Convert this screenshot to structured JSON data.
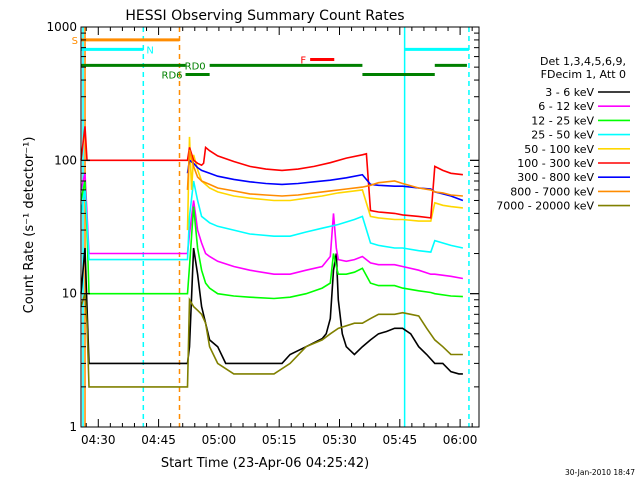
{
  "chart_data": {
    "type": "line",
    "title": "HESSI Observing Summary Count Rates",
    "xlabel": "Start Time (23-Apr-06 04:25:42)",
    "ylabel": "Count Rate (s⁻¹ detector⁻¹)",
    "x_unit": "minutes after 04:25:42",
    "xlim": [
      0,
      99
    ],
    "ylim": [
      1,
      1000
    ],
    "yscale": "log",
    "grid": false,
    "x_ticks": [
      {
        "label": "04:30",
        "value": 4.3
      },
      {
        "label": "04:45",
        "value": 19.3
      },
      {
        "label": "05:00",
        "value": 34.3
      },
      {
        "label": "05:15",
        "value": 49.3
      },
      {
        "label": "05:30",
        "value": 64.3
      },
      {
        "label": "05:45",
        "value": 79.3
      },
      {
        "label": "06:00",
        "value": 94.3
      }
    ],
    "y_ticks": [
      {
        "label": "1",
        "value": 1
      },
      {
        "label": "10",
        "value": 10
      },
      {
        "label": "100",
        "value": 100
      },
      {
        "label": "1000",
        "value": 1000
      }
    ],
    "legend_header": [
      "Det 1,3,4,5,6,9,",
      "FDecim 1, Att 0"
    ],
    "legend_placement": "right",
    "series": [
      {
        "name": "3 - 6 keV",
        "color": "#000000",
        "points": [
          [
            0,
            10
          ],
          [
            1,
            22
          ],
          [
            1.5,
            8
          ],
          [
            2,
            3
          ],
          [
            26.5,
            3
          ],
          [
            27,
            4
          ],
          [
            28,
            22
          ],
          [
            29,
            14
          ],
          [
            30,
            8
          ],
          [
            31,
            6
          ],
          [
            32,
            4.5
          ],
          [
            34,
            4
          ],
          [
            36,
            3
          ],
          [
            40,
            3
          ],
          [
            48,
            3
          ],
          [
            50,
            3
          ],
          [
            52,
            3.5
          ],
          [
            56,
            4
          ],
          [
            60,
            4.6
          ],
          [
            61,
            5
          ],
          [
            62,
            6.5
          ],
          [
            62.8,
            15
          ],
          [
            63.5,
            20
          ],
          [
            64,
            9
          ],
          [
            65,
            5
          ],
          [
            66,
            4
          ],
          [
            68,
            3.5
          ],
          [
            70,
            4
          ],
          [
            72,
            4.5
          ],
          [
            74,
            5
          ],
          [
            76,
            5.2
          ],
          [
            78,
            5.5
          ],
          [
            80,
            5.5
          ],
          [
            82,
            5
          ],
          [
            84,
            4
          ],
          [
            86,
            3.5
          ],
          [
            88,
            3
          ],
          [
            90,
            3
          ],
          [
            92,
            2.6
          ],
          [
            94,
            2.5
          ],
          [
            95,
            2.5
          ]
        ]
      },
      {
        "name": "6 - 12 keV",
        "color": "#ff00ff",
        "points": [
          [
            0,
            60
          ],
          [
            1,
            80
          ],
          [
            1.5,
            40
          ],
          [
            2,
            20
          ],
          [
            26.5,
            20
          ],
          [
            27,
            28
          ],
          [
            28,
            50
          ],
          [
            29,
            30
          ],
          [
            30,
            24
          ],
          [
            31,
            20
          ],
          [
            32,
            19
          ],
          [
            34,
            17.5
          ],
          [
            38,
            16
          ],
          [
            42,
            15
          ],
          [
            48,
            14
          ],
          [
            52,
            14
          ],
          [
            56,
            15
          ],
          [
            60,
            16
          ],
          [
            62,
            19
          ],
          [
            62.8,
            40
          ],
          [
            63.5,
            22
          ],
          [
            64,
            18
          ],
          [
            66,
            17.5
          ],
          [
            68,
            18
          ],
          [
            70,
            19
          ],
          [
            72,
            17
          ],
          [
            74,
            16.5
          ],
          [
            78,
            16.5
          ],
          [
            80,
            16
          ],
          [
            84,
            15
          ],
          [
            87,
            14
          ],
          [
            88,
            14
          ],
          [
            92,
            13.5
          ],
          [
            95,
            13
          ]
        ]
      },
      {
        "name": "12 - 25 keV",
        "color": "#00ff00",
        "points": [
          [
            0,
            50
          ],
          [
            1,
            70
          ],
          [
            1.5,
            30
          ],
          [
            2,
            10
          ],
          [
            26.5,
            10
          ],
          [
            27,
            16
          ],
          [
            28,
            45
          ],
          [
            29,
            22
          ],
          [
            30,
            15
          ],
          [
            31,
            12
          ],
          [
            32,
            11
          ],
          [
            34,
            10
          ],
          [
            38,
            9.6
          ],
          [
            42,
            9.4
          ],
          [
            48,
            9.2
          ],
          [
            52,
            9.4
          ],
          [
            56,
            10
          ],
          [
            60,
            11
          ],
          [
            62,
            12
          ],
          [
            62.8,
            20
          ],
          [
            63.5,
            16
          ],
          [
            64,
            14
          ],
          [
            66,
            14
          ],
          [
            68,
            14.5
          ],
          [
            70,
            15.5
          ],
          [
            72,
            12
          ],
          [
            74,
            11.5
          ],
          [
            78,
            11.5
          ],
          [
            80,
            11
          ],
          [
            84,
            10.5
          ],
          [
            87,
            10.2
          ],
          [
            88,
            10
          ],
          [
            92,
            9.6
          ],
          [
            95,
            9.5
          ]
        ]
      },
      {
        "name": "25 - 50 keV",
        "color": "#00ffff",
        "points": [
          [
            0,
            40
          ],
          [
            1,
            60
          ],
          [
            1.5,
            35
          ],
          [
            2,
            18
          ],
          [
            26.5,
            18
          ],
          [
            27,
            38
          ],
          [
            28,
            70
          ],
          [
            29,
            50
          ],
          [
            30,
            38
          ],
          [
            32,
            34
          ],
          [
            34,
            32
          ],
          [
            38,
            30
          ],
          [
            42,
            28
          ],
          [
            48,
            27
          ],
          [
            52,
            27
          ],
          [
            56,
            29
          ],
          [
            60,
            31
          ],
          [
            64,
            33
          ],
          [
            68,
            36
          ],
          [
            70,
            38
          ],
          [
            72,
            24
          ],
          [
            74,
            23
          ],
          [
            78,
            22
          ],
          [
            80,
            22
          ],
          [
            84,
            21
          ],
          [
            87,
            20.5
          ],
          [
            88,
            25
          ],
          [
            92,
            23
          ],
          [
            95,
            22
          ]
        ]
      },
      {
        "name": "50 - 100 keV",
        "color": "#ffd700",
        "points": [
          [
            26.5,
            30
          ],
          [
            27,
            150
          ],
          [
            27.5,
            60
          ],
          [
            28,
            110
          ],
          [
            29,
            85
          ],
          [
            30,
            70
          ],
          [
            32,
            62
          ],
          [
            34,
            58
          ],
          [
            38,
            54
          ],
          [
            42,
            52
          ],
          [
            48,
            50
          ],
          [
            52,
            50
          ],
          [
            56,
            52
          ],
          [
            60,
            54
          ],
          [
            64,
            57
          ],
          [
            68,
            59
          ],
          [
            70,
            60
          ],
          [
            72,
            38
          ],
          [
            74,
            37
          ],
          [
            78,
            36
          ],
          [
            80,
            36
          ],
          [
            84,
            35
          ],
          [
            87,
            35
          ],
          [
            88,
            48
          ],
          [
            90,
            46
          ],
          [
            92,
            45
          ],
          [
            95,
            44
          ]
        ]
      },
      {
        "name": "100 - 300 keV",
        "color": "#ff0000",
        "points": [
          [
            0,
            100
          ],
          [
            1,
            180
          ],
          [
            1.5,
            100
          ],
          [
            26.5,
            100
          ],
          [
            27,
            125
          ],
          [
            28,
            100
          ],
          [
            29,
            95
          ],
          [
            30,
            92
          ],
          [
            30.5,
            95
          ],
          [
            31,
            125
          ],
          [
            32,
            118
          ],
          [
            34,
            108
          ],
          [
            38,
            98
          ],
          [
            42,
            90
          ],
          [
            46,
            86
          ],
          [
            50,
            84
          ],
          [
            54,
            86
          ],
          [
            58,
            90
          ],
          [
            62,
            96
          ],
          [
            66,
            104
          ],
          [
            70,
            110
          ],
          [
            71,
            112
          ],
          [
            72,
            42
          ],
          [
            74,
            41
          ],
          [
            78,
            40
          ],
          [
            80,
            39
          ],
          [
            84,
            38
          ],
          [
            87,
            37
          ],
          [
            88,
            90
          ],
          [
            90,
            84
          ],
          [
            92,
            80
          ],
          [
            95,
            78
          ]
        ]
      },
      {
        "name": "300 - 800 keV",
        "color": "#0000ff",
        "points": [
          [
            26.5,
            80
          ],
          [
            27,
            100
          ],
          [
            28,
            95
          ],
          [
            29,
            88
          ],
          [
            30,
            84
          ],
          [
            32,
            80
          ],
          [
            34,
            76
          ],
          [
            38,
            72
          ],
          [
            42,
            69
          ],
          [
            46,
            67
          ],
          [
            50,
            66
          ],
          [
            54,
            67
          ],
          [
            58,
            69
          ],
          [
            62,
            71
          ],
          [
            66,
            74
          ],
          [
            70,
            78
          ],
          [
            72,
            66
          ],
          [
            74,
            65
          ],
          [
            78,
            64
          ],
          [
            80,
            64
          ],
          [
            84,
            62
          ],
          [
            87,
            61
          ],
          [
            88,
            58
          ],
          [
            90,
            56
          ],
          [
            92,
            54
          ],
          [
            95,
            50
          ]
        ]
      },
      {
        "name": "800 - 7000 keV",
        "color": "#ff8c00",
        "points": [
          [
            26.5,
            60
          ],
          [
            27,
            120
          ],
          [
            28,
            90
          ],
          [
            29,
            75
          ],
          [
            30,
            70
          ],
          [
            32,
            66
          ],
          [
            34,
            62
          ],
          [
            38,
            59
          ],
          [
            42,
            56
          ],
          [
            46,
            55
          ],
          [
            50,
            54
          ],
          [
            54,
            55
          ],
          [
            58,
            57
          ],
          [
            62,
            59
          ],
          [
            66,
            61
          ],
          [
            70,
            63
          ],
          [
            72,
            65
          ],
          [
            74,
            68
          ],
          [
            78,
            70
          ],
          [
            80,
            67
          ],
          [
            84,
            62
          ],
          [
            87,
            60
          ],
          [
            88,
            58
          ],
          [
            90,
            57
          ],
          [
            92,
            55
          ],
          [
            95,
            54
          ]
        ]
      },
      {
        "name": "7000 - 20000 keV",
        "color": "#808000",
        "points": [
          [
            0,
            8
          ],
          [
            1,
            10
          ],
          [
            1.5,
            6
          ],
          [
            2,
            2
          ],
          [
            26.5,
            2
          ],
          [
            27,
            9
          ],
          [
            28,
            8
          ],
          [
            29,
            7.5
          ],
          [
            30,
            7
          ],
          [
            31,
            6
          ],
          [
            32,
            4
          ],
          [
            34,
            3
          ],
          [
            38,
            2.5
          ],
          [
            42,
            2.5
          ],
          [
            48,
            2.5
          ],
          [
            52,
            3
          ],
          [
            56,
            4
          ],
          [
            60,
            4.5
          ],
          [
            62,
            5
          ],
          [
            64,
            5.5
          ],
          [
            68,
            6
          ],
          [
            70,
            6
          ],
          [
            72,
            6.5
          ],
          [
            74,
            7
          ],
          [
            76,
            7
          ],
          [
            78,
            7
          ],
          [
            80,
            7.2
          ],
          [
            82,
            7
          ],
          [
            84,
            6.8
          ],
          [
            86,
            5.5
          ],
          [
            88,
            4.5
          ],
          [
            90,
            4
          ],
          [
            92,
            3.5
          ],
          [
            95,
            3.5
          ]
        ]
      }
    ],
    "vertical_markers": [
      {
        "x": 0.5,
        "color": "#00ffff",
        "style": "solid"
      },
      {
        "x": 1.0,
        "color": "#ff8c00",
        "style": "solid"
      },
      {
        "x": 15.5,
        "color": "#00ffff",
        "style": "dashed"
      },
      {
        "x": 24.5,
        "color": "#ff8c00",
        "style": "dashed"
      },
      {
        "x": 80.5,
        "color": "#00ffff",
        "style": "solid"
      },
      {
        "x": 96.5,
        "color": "#00ffff",
        "style": "dashed"
      }
    ],
    "state_bars": [
      {
        "label": "S",
        "color": "#ff8c00",
        "segments": [
          [
            0,
            24.5
          ]
        ],
        "level": 800
      },
      {
        "label": "N",
        "color": "#00ffff",
        "segments": [
          [
            0,
            15.5
          ],
          [
            80.5,
            96.5
          ]
        ],
        "level": 680
      },
      {
        "label": "F",
        "color": "#ff0000",
        "segments": [
          [
            57,
            63
          ]
        ],
        "level": 570
      },
      {
        "label": "RD0",
        "color": "#008000",
        "segments": [
          [
            0,
            26
          ],
          [
            32,
            70
          ],
          [
            88,
            96
          ]
        ],
        "level": 515
      },
      {
        "label": "RD6",
        "color": "#008000",
        "segments": [
          [
            26,
            32
          ],
          [
            70,
            88
          ]
        ],
        "level": 440
      }
    ]
  },
  "footer": {
    "timestamp": "30-Jan-2010 18:47"
  }
}
